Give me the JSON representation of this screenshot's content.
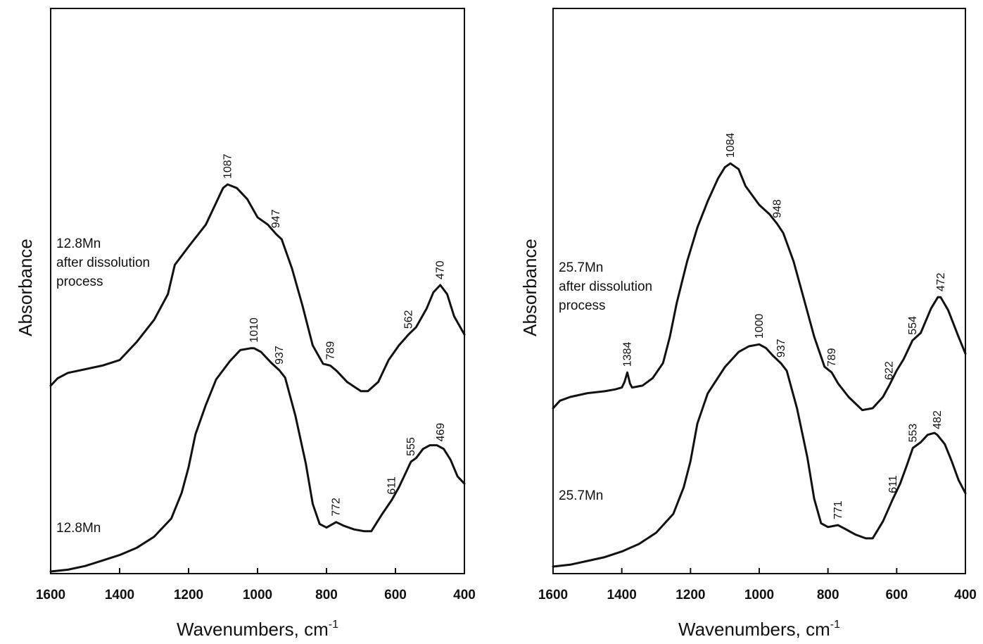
{
  "chart_data": [
    {
      "type": "line",
      "xlabel": "Wavenumbers, cm",
      "xlabel_sup": "-1",
      "ylabel": "Absorbance",
      "xlim": [
        1600,
        400
      ],
      "x_reversed": true,
      "ylim": [
        0,
        1
      ],
      "xticks": [
        "1600",
        "1400",
        "1200",
        "1000",
        "800",
        "600",
        "400"
      ],
      "series": [
        {
          "label_lines": [
            "12.8Mn",
            "after dissolution",
            "process"
          ],
          "points": [
            [
              1600,
              0.35
            ],
            [
              1580,
              0.37
            ],
            [
              1550,
              0.385
            ],
            [
              1500,
              0.395
            ],
            [
              1450,
              0.405
            ],
            [
              1400,
              0.42
            ],
            [
              1350,
              0.47
            ],
            [
              1300,
              0.53
            ],
            [
              1260,
              0.6
            ],
            [
              1240,
              0.68
            ],
            [
              1200,
              0.73
            ],
            [
              1150,
              0.79
            ],
            [
              1120,
              0.85
            ],
            [
              1100,
              0.89
            ],
            [
              1087,
              0.9
            ],
            [
              1060,
              0.89
            ],
            [
              1030,
              0.86
            ],
            [
              1000,
              0.81
            ],
            [
              970,
              0.79
            ],
            [
              947,
              0.765
            ],
            [
              930,
              0.75
            ],
            [
              900,
              0.67
            ],
            [
              870,
              0.57
            ],
            [
              840,
              0.46
            ],
            [
              810,
              0.41
            ],
            [
              789,
              0.405
            ],
            [
              770,
              0.39
            ],
            [
              740,
              0.36
            ],
            [
              700,
              0.335
            ],
            [
              680,
              0.335
            ],
            [
              650,
              0.36
            ],
            [
              620,
              0.42
            ],
            [
              590,
              0.46
            ],
            [
              562,
              0.49
            ],
            [
              540,
              0.51
            ],
            [
              510,
              0.56
            ],
            [
              490,
              0.605
            ],
            [
              470,
              0.625
            ],
            [
              450,
              0.6
            ],
            [
              430,
              0.54
            ],
            [
              400,
              0.49
            ]
          ],
          "peaks": [
            {
              "x": 1087,
              "label": "1087"
            },
            {
              "x": 947,
              "label": "947"
            },
            {
              "x": 789,
              "label": "789"
            },
            {
              "x": 562,
              "label": "562"
            },
            {
              "x": 470,
              "label": "470"
            }
          ]
        },
        {
          "label_lines": [
            "12.8Mn"
          ],
          "points": [
            [
              1600,
              0.015
            ],
            [
              1550,
              0.02
            ],
            [
              1500,
              0.03
            ],
            [
              1450,
              0.045
            ],
            [
              1400,
              0.06
            ],
            [
              1350,
              0.08
            ],
            [
              1300,
              0.11
            ],
            [
              1250,
              0.16
            ],
            [
              1220,
              0.23
            ],
            [
              1200,
              0.3
            ],
            [
              1180,
              0.39
            ],
            [
              1150,
              0.47
            ],
            [
              1120,
              0.54
            ],
            [
              1080,
              0.59
            ],
            [
              1050,
              0.62
            ],
            [
              1020,
              0.625
            ],
            [
              1010,
              0.625
            ],
            [
              990,
              0.615
            ],
            [
              960,
              0.585
            ],
            [
              937,
              0.565
            ],
            [
              920,
              0.545
            ],
            [
              890,
              0.44
            ],
            [
              860,
              0.31
            ],
            [
              840,
              0.2
            ],
            [
              820,
              0.145
            ],
            [
              800,
              0.135
            ],
            [
              772,
              0.15
            ],
            [
              750,
              0.14
            ],
            [
              720,
              0.13
            ],
            [
              690,
              0.125
            ],
            [
              670,
              0.125
            ],
            [
              640,
              0.17
            ],
            [
              611,
              0.21
            ],
            [
              590,
              0.245
            ],
            [
              570,
              0.285
            ],
            [
              555,
              0.315
            ],
            [
              540,
              0.325
            ],
            [
              520,
              0.35
            ],
            [
              500,
              0.36
            ],
            [
              480,
              0.36
            ],
            [
              460,
              0.35
            ],
            [
              440,
              0.32
            ],
            [
              420,
              0.275
            ],
            [
              400,
              0.255
            ]
          ],
          "peaks": [
            {
              "x": 1010,
              "label": "1010"
            },
            {
              "x": 937,
              "label": "937"
            },
            {
              "x": 772,
              "label": "772"
            },
            {
              "x": 611,
              "label": "611"
            },
            {
              "x": 555,
              "label": "555"
            },
            {
              "x": 469,
              "label": "469"
            }
          ]
        }
      ]
    },
    {
      "type": "line",
      "xlabel": "Wavenumbers, cm",
      "xlabel_sup": "-1",
      "ylabel": "Absorbance",
      "xlim": [
        1600,
        400
      ],
      "x_reversed": true,
      "ylim": [
        0,
        1
      ],
      "xticks": [
        "1600",
        "1400",
        "1200",
        "1000",
        "800",
        "600",
        "400"
      ],
      "series": [
        {
          "label_lines": [
            "25.7Mn",
            "after dissolution",
            "process"
          ],
          "points": [
            [
              1600,
              0.31
            ],
            [
              1580,
              0.33
            ],
            [
              1550,
              0.34
            ],
            [
              1500,
              0.35
            ],
            [
              1450,
              0.355
            ],
            [
              1420,
              0.36
            ],
            [
              1400,
              0.365
            ],
            [
              1392,
              0.38
            ],
            [
              1384,
              0.405
            ],
            [
              1376,
              0.375
            ],
            [
              1370,
              0.365
            ],
            [
              1340,
              0.37
            ],
            [
              1310,
              0.39
            ],
            [
              1280,
              0.43
            ],
            [
              1260,
              0.5
            ],
            [
              1240,
              0.59
            ],
            [
              1210,
              0.7
            ],
            [
              1180,
              0.79
            ],
            [
              1150,
              0.86
            ],
            [
              1120,
              0.92
            ],
            [
              1100,
              0.95
            ],
            [
              1084,
              0.96
            ],
            [
              1060,
              0.945
            ],
            [
              1040,
              0.9
            ],
            [
              1000,
              0.85
            ],
            [
              970,
              0.825
            ],
            [
              948,
              0.8
            ],
            [
              930,
              0.775
            ],
            [
              900,
              0.7
            ],
            [
              870,
              0.6
            ],
            [
              840,
              0.5
            ],
            [
              810,
              0.42
            ],
            [
              789,
              0.405
            ],
            [
              770,
              0.375
            ],
            [
              740,
              0.34
            ],
            [
              700,
              0.305
            ],
            [
              670,
              0.31
            ],
            [
              640,
              0.34
            ],
            [
              622,
              0.37
            ],
            [
              600,
              0.41
            ],
            [
              580,
              0.44
            ],
            [
              554,
              0.49
            ],
            [
              530,
              0.51
            ],
            [
              500,
              0.575
            ],
            [
              480,
              0.605
            ],
            [
              472,
              0.605
            ],
            [
              450,
              0.57
            ],
            [
              420,
              0.5
            ],
            [
              400,
              0.455
            ]
          ],
          "peaks": [
            {
              "x": 1384,
              "label": "1384"
            },
            {
              "x": 1084,
              "label": "1084"
            },
            {
              "x": 948,
              "label": "948"
            },
            {
              "x": 789,
              "label": "789"
            },
            {
              "x": 622,
              "label": "622"
            },
            {
              "x": 554,
              "label": "554"
            },
            {
              "x": 472,
              "label": "472"
            }
          ]
        },
        {
          "label_lines": [
            "25.7Mn"
          ],
          "points": [
            [
              1600,
              0.04
            ],
            [
              1550,
              0.045
            ],
            [
              1500,
              0.055
            ],
            [
              1450,
              0.065
            ],
            [
              1400,
              0.08
            ],
            [
              1350,
              0.1
            ],
            [
              1300,
              0.13
            ],
            [
              1250,
              0.18
            ],
            [
              1220,
              0.25
            ],
            [
              1200,
              0.32
            ],
            [
              1180,
              0.42
            ],
            [
              1150,
              0.5
            ],
            [
              1100,
              0.57
            ],
            [
              1060,
              0.61
            ],
            [
              1030,
              0.625
            ],
            [
              1000,
              0.63
            ],
            [
              980,
              0.62
            ],
            [
              960,
              0.6
            ],
            [
              937,
              0.58
            ],
            [
              920,
              0.56
            ],
            [
              890,
              0.46
            ],
            [
              860,
              0.33
            ],
            [
              840,
              0.22
            ],
            [
              820,
              0.155
            ],
            [
              800,
              0.145
            ],
            [
              771,
              0.15
            ],
            [
              750,
              0.14
            ],
            [
              720,
              0.125
            ],
            [
              690,
              0.115
            ],
            [
              670,
              0.115
            ],
            [
              640,
              0.16
            ],
            [
              611,
              0.22
            ],
            [
              590,
              0.26
            ],
            [
              570,
              0.31
            ],
            [
              553,
              0.355
            ],
            [
              530,
              0.37
            ],
            [
              510,
              0.39
            ],
            [
              490,
              0.395
            ],
            [
              482,
              0.39
            ],
            [
              460,
              0.365
            ],
            [
              440,
              0.32
            ],
            [
              420,
              0.27
            ],
            [
              400,
              0.235
            ]
          ],
          "peaks": [
            {
              "x": 1000,
              "label": "1000"
            },
            {
              "x": 937,
              "label": "937"
            },
            {
              "x": 771,
              "label": "771"
            },
            {
              "x": 611,
              "label": "611"
            },
            {
              "x": 553,
              "label": "553"
            },
            {
              "x": 482,
              "label": "482"
            }
          ]
        }
      ]
    }
  ]
}
